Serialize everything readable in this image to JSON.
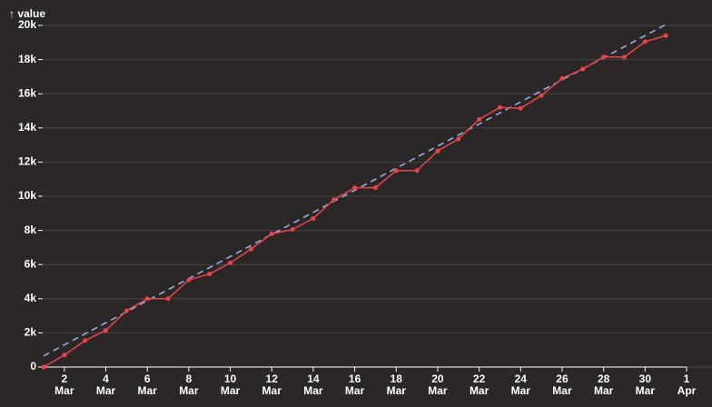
{
  "chart_data": {
    "type": "line",
    "y_label": "↑ value",
    "x": [
      1,
      2,
      3,
      4,
      5,
      6,
      7,
      8,
      9,
      10,
      11,
      12,
      13,
      14,
      15,
      16,
      17,
      18,
      19,
      20,
      21,
      22,
      23,
      24,
      25,
      26,
      27,
      28,
      29,
      30,
      31
    ],
    "series": [
      {
        "color": "#e8454a",
        "values": [
          0,
          700,
          1550,
          2150,
          3300,
          4000,
          4000,
          5100,
          5450,
          6100,
          6900,
          7800,
          8050,
          8700,
          9800,
          10500,
          10500,
          11500,
          11500,
          12650,
          13350,
          14500,
          15200,
          15150,
          15900,
          16900,
          17450,
          18150,
          18150,
          19050,
          19400
        ]
      }
    ],
    "trend": {
      "color": "#9db4f0",
      "x": [
        1,
        31
      ],
      "values": [
        650,
        20050
      ]
    },
    "xlim": [
      1,
      32
    ],
    "xticks": [
      {
        "value": 2,
        "label": [
          "2",
          "Mar"
        ]
      },
      {
        "value": 4,
        "label": [
          "4",
          "Mar"
        ]
      },
      {
        "value": 6,
        "label": [
          "6",
          "Mar"
        ]
      },
      {
        "value": 8,
        "label": [
          "8",
          "Mar"
        ]
      },
      {
        "value": 10,
        "label": [
          "10",
          "Mar"
        ]
      },
      {
        "value": 12,
        "label": [
          "12",
          "Mar"
        ]
      },
      {
        "value": 14,
        "label": [
          "14",
          "Mar"
        ]
      },
      {
        "value": 16,
        "label": [
          "16",
          "Mar"
        ]
      },
      {
        "value": 18,
        "label": [
          "18",
          "Mar"
        ]
      },
      {
        "value": 20,
        "label": [
          "20",
          "Mar"
        ]
      },
      {
        "value": 22,
        "label": [
          "22",
          "Mar"
        ]
      },
      {
        "value": 24,
        "label": [
          "24",
          "Mar"
        ]
      },
      {
        "value": 26,
        "label": [
          "26",
          "Mar"
        ]
      },
      {
        "value": 28,
        "label": [
          "28",
          "Mar"
        ]
      },
      {
        "value": 30,
        "label": [
          "30",
          "Mar"
        ]
      },
      {
        "value": 32,
        "label": [
          "1",
          "Apr"
        ]
      }
    ],
    "ylim": [
      0,
      20000
    ],
    "yticks": [
      0,
      {
        "value": 2000,
        "label": "2k"
      },
      {
        "value": 4000,
        "label": "4k"
      },
      {
        "value": 6000,
        "label": "6k"
      },
      {
        "value": 8000,
        "label": "8k"
      },
      {
        "value": 10000,
        "label": "10k"
      },
      {
        "value": 12000,
        "label": "12k"
      },
      {
        "value": 14000,
        "label": "14k"
      },
      {
        "value": 16000,
        "label": "16k"
      },
      {
        "value": 18000,
        "label": "18k"
      },
      {
        "value": 20000,
        "label": "20k"
      }
    ],
    "grid": true
  }
}
